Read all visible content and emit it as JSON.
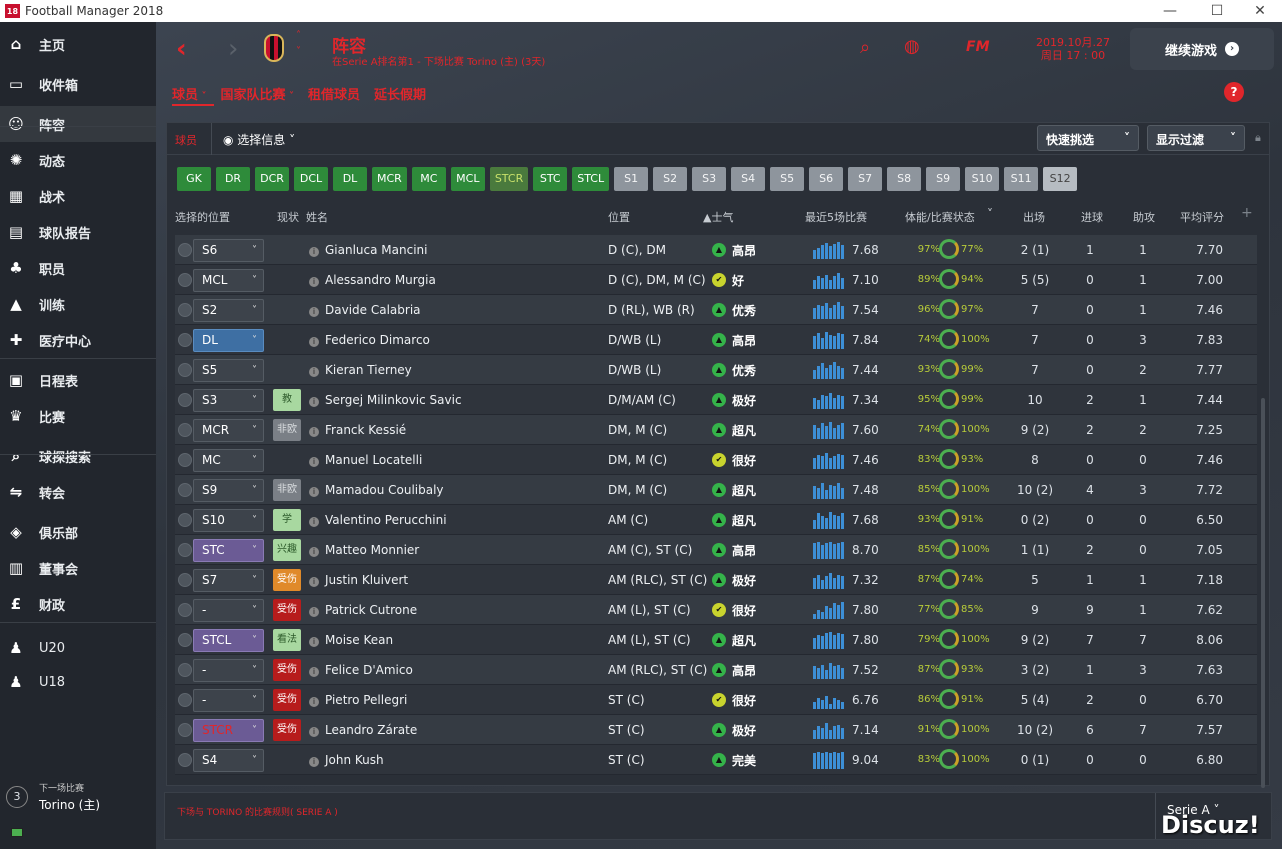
{
  "window": {
    "title": "Football Manager 2018",
    "logo": "18",
    "min": "—",
    "max": "☐",
    "close": "✕"
  },
  "sidebar": {
    "items": [
      {
        "label": "主页",
        "icon": "home-icon"
      },
      {
        "label": "收件箱",
        "icon": "inbox-icon"
      },
      {
        "label": "阵容",
        "icon": "squad-icon"
      },
      {
        "label": "动态",
        "icon": "dynamics-icon"
      },
      {
        "label": "战术",
        "icon": "tactics-icon"
      },
      {
        "label": "球队报告",
        "icon": "report-icon"
      },
      {
        "label": "职员",
        "icon": "staff-icon"
      },
      {
        "label": "训练",
        "icon": "training-icon"
      },
      {
        "label": "医疗中心",
        "icon": "medical-icon"
      },
      {
        "label": "日程表",
        "icon": "calendar-icon"
      },
      {
        "label": "比赛",
        "icon": "trophy-icon"
      },
      {
        "label": "球探搜索",
        "icon": "search-icon"
      },
      {
        "label": "转会",
        "icon": "transfer-icon"
      },
      {
        "label": "俱乐部",
        "icon": "club-icon"
      },
      {
        "label": "董事会",
        "icon": "board-icon"
      },
      {
        "label": "财政",
        "icon": "finance-icon"
      },
      {
        "label": "U20",
        "icon": "u20-icon"
      },
      {
        "label": "U18",
        "icon": "u18-icon"
      }
    ],
    "next_match_label": "下一场比赛",
    "next_match_team": "Torino (主)",
    "next_match_days": "3"
  },
  "header": {
    "title": "阵容",
    "subtitle": "在Serie A排名第1 - 下场比赛 Torino (主) (3天)",
    "date": "2019.10月.27",
    "time": "周日 17 : 00",
    "continue": "继续游戏",
    "fm": "FM"
  },
  "tabs": [
    "球员",
    "国家队比赛",
    "租借球员",
    "延长假期"
  ],
  "panel": {
    "label": "球员",
    "view": "选择信息",
    "quick_pick": "快速挑选",
    "filter": "显示过滤"
  },
  "chips": [
    {
      "t": "GK",
      "k": "g"
    },
    {
      "t": "DR",
      "k": "g"
    },
    {
      "t": "DCR",
      "k": "g"
    },
    {
      "t": "DCL",
      "k": "g"
    },
    {
      "t": "DL",
      "k": "g"
    },
    {
      "t": "MCR",
      "k": "g"
    },
    {
      "t": "MC",
      "k": "g"
    },
    {
      "t": "MCL",
      "k": "g"
    },
    {
      "t": "STCR",
      "k": "gy"
    },
    {
      "t": "STC",
      "k": "g"
    },
    {
      "t": "STCL",
      "k": "g"
    },
    {
      "t": "S1",
      "k": "s"
    },
    {
      "t": "S2",
      "k": "s"
    },
    {
      "t": "S3",
      "k": "s"
    },
    {
      "t": "S4",
      "k": "s"
    },
    {
      "t": "S5",
      "k": "s"
    },
    {
      "t": "S6",
      "k": "s"
    },
    {
      "t": "S7",
      "k": "s"
    },
    {
      "t": "S8",
      "k": "s"
    },
    {
      "t": "S9",
      "k": "s"
    },
    {
      "t": "S10",
      "k": "s"
    },
    {
      "t": "S11",
      "k": "s"
    },
    {
      "t": "S12",
      "k": "sd"
    }
  ],
  "columns": {
    "sel": "选择的位置",
    "status": "现状",
    "name": "姓名",
    "position": "位置",
    "morale": "▲士气",
    "last5": "最近5场比赛",
    "fitness": "体能/比赛状态",
    "apps": "出场",
    "goals": "进球",
    "assists": "助攻",
    "rating": "平均评分",
    "add": "+"
  },
  "players": [
    {
      "sel": "S6",
      "selc": "",
      "st": "",
      "sc": "",
      "name": "Gianluca Mancini",
      "pos": "D (C), DM",
      "mo": "高昂",
      "my": false,
      "avg": "7.68",
      "fit": "97%",
      "cnd": "77%",
      "apps": "2 (1)",
      "g": "1",
      "a": "1",
      "r": "7.70",
      "bars": [
        0.5,
        0.6,
        0.8,
        0.9,
        0.7,
        0.85,
        0.95,
        0.75
      ]
    },
    {
      "sel": "MCL",
      "selc": "",
      "st": "",
      "sc": "",
      "name": "Alessandro Murgia",
      "pos": "D (C), DM, M (C)",
      "mo": "好",
      "my": true,
      "avg": "7.10",
      "fit": "89%",
      "cnd": "94%",
      "apps": "5 (5)",
      "g": "0",
      "a": "1",
      "r": "7.00",
      "bars": [
        0.5,
        0.7,
        0.6,
        0.8,
        0.5,
        0.7,
        0.9,
        0.6
      ]
    },
    {
      "sel": "S2",
      "selc": "",
      "st": "",
      "sc": "",
      "name": "Davide Calabria",
      "pos": "D (RL), WB (R)",
      "mo": "优秀",
      "my": false,
      "avg": "7.54",
      "fit": "96%",
      "cnd": "97%",
      "apps": "7",
      "g": "0",
      "a": "1",
      "r": "7.46",
      "bars": [
        0.6,
        0.8,
        0.7,
        0.9,
        0.6,
        0.8,
        0.95,
        0.7
      ]
    },
    {
      "sel": "DL",
      "selc": "blue",
      "st": "",
      "sc": "",
      "name": "Federico Dimarco",
      "pos": "D/WB (L)",
      "mo": "高昂",
      "my": false,
      "avg": "7.84",
      "fit": "74%",
      "cnd": "100%",
      "apps": "7",
      "g": "0",
      "a": "3",
      "r": "7.83",
      "bars": [
        0.7,
        0.9,
        0.6,
        0.95,
        0.8,
        0.7,
        0.9,
        0.85
      ]
    },
    {
      "sel": "S5",
      "selc": "",
      "st": "",
      "sc": "",
      "name": "Kieran Tierney",
      "pos": "D/WB (L)",
      "mo": "优秀",
      "my": false,
      "avg": "7.44",
      "fit": "93%",
      "cnd": "99%",
      "apps": "7",
      "g": "0",
      "a": "2",
      "r": "7.77",
      "bars": [
        0.5,
        0.7,
        0.9,
        0.6,
        0.8,
        0.95,
        0.7,
        0.6
      ]
    },
    {
      "sel": "S3",
      "selc": "",
      "st": "教",
      "sc": "lg",
      "name": "Sergej Milinkovic Savic",
      "pos": "D/M/AM (C)",
      "mo": "极好",
      "my": false,
      "avg": "7.34",
      "fit": "95%",
      "cnd": "99%",
      "apps": "10",
      "g": "2",
      "a": "1",
      "r": "7.44",
      "bars": [
        0.6,
        0.5,
        0.8,
        0.7,
        0.9,
        0.6,
        0.8,
        0.7
      ]
    },
    {
      "sel": "MCR",
      "selc": "",
      "st": "非欧",
      "sc": "gr",
      "name": "Franck Kessié",
      "pos": "DM, M (C)",
      "mo": "超凡",
      "my": false,
      "avg": "7.60",
      "fit": "74%",
      "cnd": "100%",
      "apps": "9 (2)",
      "g": "2",
      "a": "2",
      "r": "7.25",
      "bars": [
        0.8,
        0.6,
        0.9,
        0.7,
        0.95,
        0.6,
        0.8,
        0.9
      ]
    },
    {
      "sel": "MC",
      "selc": "",
      "st": "",
      "sc": "",
      "name": "Manuel Locatelli",
      "pos": "DM, M (C)",
      "mo": "很好",
      "my": true,
      "avg": "7.46",
      "fit": "83%",
      "cnd": "93%",
      "apps": "8",
      "g": "0",
      "a": "0",
      "r": "7.46",
      "bars": [
        0.6,
        0.8,
        0.7,
        0.9,
        0.6,
        0.7,
        0.85,
        0.8
      ]
    },
    {
      "sel": "S9",
      "selc": "",
      "st": "非欧",
      "sc": "gr",
      "name": "Mamadou Coulibaly",
      "pos": "DM, M (C)",
      "mo": "超凡",
      "my": false,
      "avg": "7.48",
      "fit": "85%",
      "cnd": "100%",
      "apps": "10 (2)",
      "g": "4",
      "a": "3",
      "r": "7.72",
      "bars": [
        0.7,
        0.6,
        0.9,
        0.5,
        0.8,
        0.7,
        0.9,
        0.6
      ]
    },
    {
      "sel": "S10",
      "selc": "",
      "st": "学",
      "sc": "lg",
      "name": "Valentino Perucchini",
      "pos": "AM (C)",
      "mo": "超凡",
      "my": false,
      "avg": "7.68",
      "fit": "93%",
      "cnd": "91%",
      "apps": "0 (2)",
      "g": "0",
      "a": "0",
      "r": "6.50",
      "bars": [
        0.5,
        0.9,
        0.7,
        0.6,
        0.95,
        0.8,
        0.7,
        0.9
      ]
    },
    {
      "sel": "STC",
      "selc": "purple",
      "st": "兴趣",
      "sc": "lg",
      "name": "Matteo Monnier",
      "pos": "AM (C), ST (C)",
      "mo": "高昂",
      "my": false,
      "avg": "8.70",
      "fit": "85%",
      "cnd": "100%",
      "apps": "1 (1)",
      "g": "2",
      "a": "0",
      "r": "7.05",
      "bars": [
        0.9,
        0.95,
        0.8,
        0.9,
        0.95,
        0.85,
        0.9,
        0.95
      ]
    },
    {
      "sel": "S7",
      "selc": "",
      "st": "受伤",
      "sc": "or",
      "name": "Justin Kluivert",
      "pos": "AM (RLC), ST (C)",
      "mo": "极好",
      "my": false,
      "avg": "7.32",
      "fit": "87%",
      "cnd": "74%",
      "apps": "5",
      "g": "1",
      "a": "1",
      "r": "7.18",
      "bars": [
        0.6,
        0.8,
        0.5,
        0.7,
        0.9,
        0.6,
        0.8,
        0.7
      ]
    },
    {
      "sel": "-",
      "selc": "",
      "st": "受伤",
      "sc": "rd",
      "name": "Patrick Cutrone",
      "pos": "AM (L), ST (C)",
      "mo": "很好",
      "my": true,
      "avg": "7.80",
      "fit": "77%",
      "cnd": "85%",
      "apps": "9",
      "g": "9",
      "a": "1",
      "r": "7.62",
      "bars": [
        0.3,
        0.5,
        0.4,
        0.7,
        0.6,
        0.9,
        0.8,
        0.95
      ]
    },
    {
      "sel": "STCL",
      "selc": "purple",
      "st": "看法",
      "sc": "lg",
      "name": "Moise Kean",
      "pos": "AM (L), ST (C)",
      "mo": "超凡",
      "my": false,
      "avg": "7.80",
      "fit": "79%",
      "cnd": "100%",
      "apps": "9 (2)",
      "g": "7",
      "a": "7",
      "r": "8.06",
      "bars": [
        0.6,
        0.8,
        0.7,
        0.9,
        0.95,
        0.8,
        0.9,
        0.85
      ]
    },
    {
      "sel": "-",
      "selc": "",
      "st": "受伤",
      "sc": "rd",
      "name": "Felice D'Amico",
      "pos": "AM (RLC), ST (C)",
      "mo": "高昂",
      "my": false,
      "avg": "7.52",
      "fit": "87%",
      "cnd": "93%",
      "apps": "3 (2)",
      "g": "1",
      "a": "3",
      "r": "7.63",
      "bars": [
        0.7,
        0.6,
        0.8,
        0.5,
        0.9,
        0.7,
        0.8,
        0.6
      ]
    },
    {
      "sel": "-",
      "selc": "",
      "st": "受伤",
      "sc": "rd",
      "name": "Pietro Pellegri",
      "pos": "ST (C)",
      "mo": "很好",
      "my": true,
      "avg": "6.76",
      "fit": "86%",
      "cnd": "91%",
      "apps": "5 (4)",
      "g": "2",
      "a": "0",
      "r": "6.70",
      "bars": [
        0.4,
        0.6,
        0.5,
        0.7,
        0.3,
        0.6,
        0.5,
        0.4
      ]
    },
    {
      "sel": "STCR",
      "selc": "purple",
      "st": "受伤",
      "sc": "rd",
      "name": "Leandro Zárate",
      "pos": "ST (C)",
      "mo": "极好",
      "my": false,
      "avg": "7.14",
      "fit": "91%",
      "cnd": "100%",
      "apps": "10 (2)",
      "g": "6",
      "a": "7",
      "r": "7.57",
      "bars": [
        0.5,
        0.7,
        0.6,
        0.9,
        0.5,
        0.7,
        0.8,
        0.6
      ],
      "red": true
    },
    {
      "sel": "S4",
      "selc": "",
      "st": "",
      "sc": "",
      "name": "John Kush",
      "pos": "ST (C)",
      "mo": "完美",
      "my": false,
      "avg": "9.04",
      "fit": "83%",
      "cnd": "100%",
      "apps": "0 (1)",
      "g": "0",
      "a": "0",
      "r": "6.80",
      "bars": [
        0.9,
        0.95,
        0.9,
        0.95,
        0.9,
        0.95,
        0.9,
        0.95
      ]
    }
  ],
  "footer": {
    "rule": "下场与 TORINO 的比赛规则( SERIE A )",
    "league": "Serie A",
    "watermark": "Discuz!"
  },
  "colors": {
    "accent": "#e0262b",
    "green_chip": "#2e8b3a",
    "sub_chip": "#8e959d",
    "bar": "#3d8fd6"
  }
}
